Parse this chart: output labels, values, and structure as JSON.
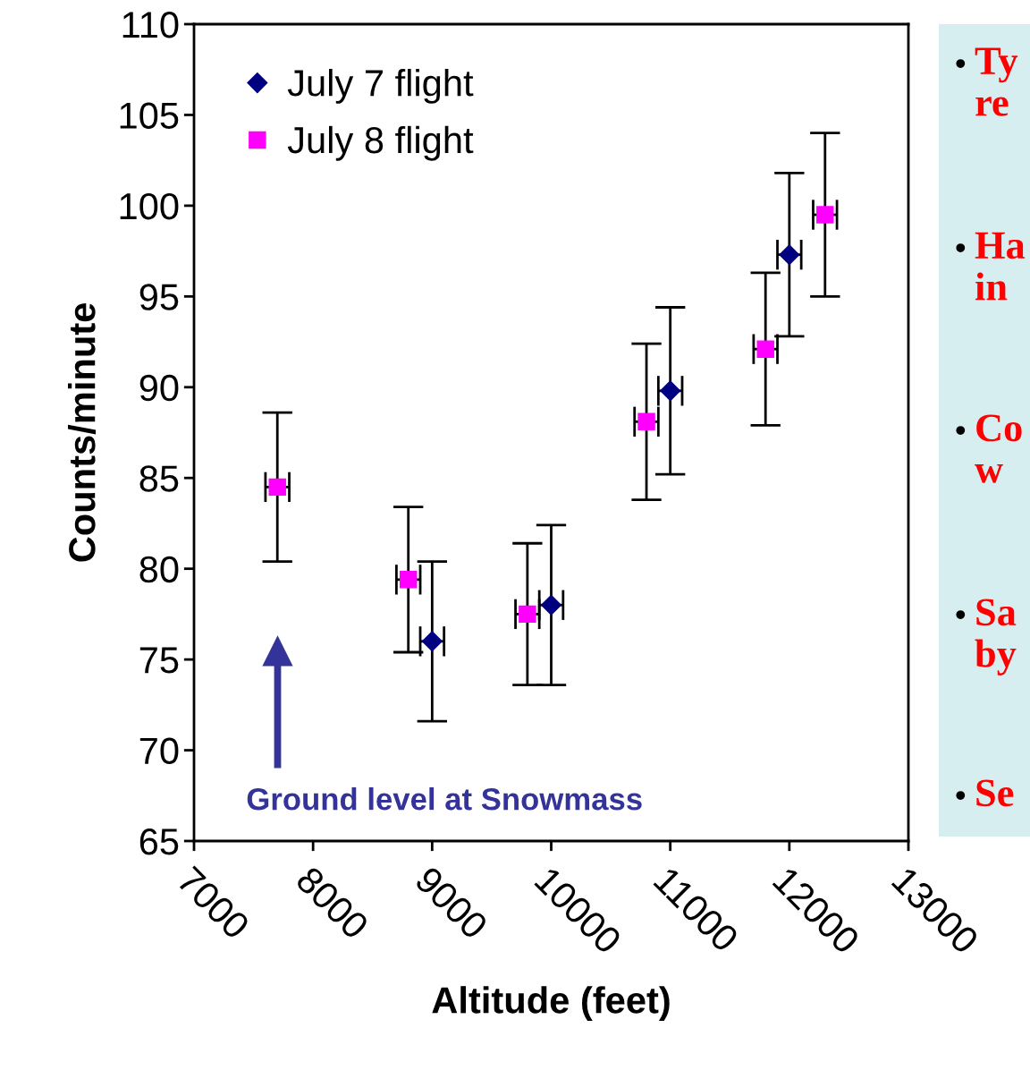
{
  "chart_data": {
    "type": "scatter",
    "xlabel": "Altitude (feet)",
    "ylabel": "Counts/minute",
    "series": [
      {
        "name": "July 7 flight",
        "color": "#000080",
        "marker": "diamond",
        "x": [
          9000,
          10000,
          11000,
          12000
        ],
        "values": [
          76.0,
          78.0,
          89.8,
          97.3
        ],
        "errors": [
          4.4,
          4.4,
          4.6,
          4.5
        ],
        "xerrors": [
          100,
          100,
          100,
          100
        ]
      },
      {
        "name": "July 8 flight",
        "color": "#ff00ff",
        "marker": "square",
        "x": [
          7700,
          8800,
          9800,
          10800,
          11800,
          12300
        ],
        "values": [
          84.5,
          79.4,
          77.5,
          88.1,
          92.1,
          99.5
        ],
        "errors": [
          4.1,
          4.0,
          3.9,
          4.3,
          4.2,
          4.5
        ],
        "xerrors": [
          100,
          100,
          100,
          100,
          100,
          100
        ]
      }
    ],
    "xlim": [
      7000,
      13000
    ],
    "xticks": [
      7000,
      8000,
      9000,
      10000,
      11000,
      12000,
      13000
    ],
    "ylim": [
      65,
      110
    ],
    "yticks": [
      65,
      70,
      75,
      80,
      85,
      90,
      95,
      100,
      105,
      110
    ],
    "grid": false,
    "legend": "top left",
    "annotations": [
      "Ground level at Snowmass",
      "• Ty\nre",
      "• Ha\nin",
      "• Co\nw",
      "• Sa\nby",
      "• Se"
    ]
  }
}
